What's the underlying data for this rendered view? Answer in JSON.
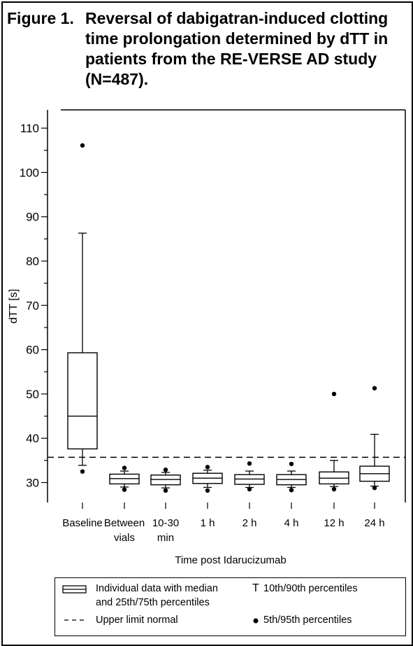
{
  "title": {
    "prefix": "Figure 1.",
    "text": "Reversal of dabigatran-induced clotting time prolongation determined by dTT in patients from the RE-VERSE AD study (N=487)."
  },
  "chart_data": {
    "type": "box",
    "title": "Figure 1. Reversal of dabigatran-induced clotting time prolongation determined by dTT in patients from the RE-VERSE AD study (N=487).",
    "xlabel": "Time post Idarucizumab",
    "ylabel": "dTT [s]",
    "ylim": [
      25,
      114
    ],
    "yticks": [
      30,
      40,
      50,
      60,
      70,
      80,
      90,
      100,
      110
    ],
    "reference_line": {
      "value": 35.7,
      "label": "Upper limit normal",
      "style": "dashed"
    },
    "categories": [
      [
        "Baseline"
      ],
      [
        "Between",
        "vials"
      ],
      [
        "10-30",
        "min"
      ],
      [
        "1 h"
      ],
      [
        "2 h"
      ],
      [
        "4 h"
      ],
      [
        "12 h"
      ],
      [
        "24 h"
      ]
    ],
    "boxes": [
      {
        "p5": 32.5,
        "p10": 33.9,
        "q1": 37.6,
        "median": 45.0,
        "q3": 59.3,
        "p90": 86.3,
        "p95": 106.1
      },
      {
        "p5": 28.4,
        "p10": 29.0,
        "q1": 29.7,
        "median": 30.9,
        "q3": 31.9,
        "p90": 32.6,
        "p95": 33.3
      },
      {
        "p5": 28.2,
        "p10": 28.8,
        "q1": 29.5,
        "median": 30.7,
        "q3": 31.7,
        "p90": 32.3,
        "p95": 32.9
      },
      {
        "p5": 28.2,
        "p10": 28.9,
        "q1": 29.8,
        "median": 31.0,
        "q3": 32.1,
        "p90": 32.8,
        "p95": 33.5
      },
      {
        "p5": 28.5,
        "p10": 28.9,
        "q1": 29.6,
        "median": 30.8,
        "q3": 31.8,
        "p90": 32.6,
        "p95": 34.3
      },
      {
        "p5": 28.3,
        "p10": 28.9,
        "q1": 29.5,
        "median": 30.7,
        "q3": 31.8,
        "p90": 32.6,
        "p95": 34.2
      },
      {
        "p5": 28.5,
        "p10": 29.1,
        "q1": 29.7,
        "median": 31.0,
        "q3": 32.4,
        "p90": 35.0,
        "p95": 50.0
      },
      {
        "p5": 28.8,
        "p10": 29.2,
        "q1": 30.3,
        "median": 32.0,
        "q3": 33.7,
        "p90": 40.9,
        "p95": 51.3
      }
    ]
  },
  "legend": {
    "box_text_line1": "Individual data with median",
    "box_text_line2": "and 25th/75th percentiles",
    "whisker_symbol": "T",
    "whisker_text": "10th/90th percentiles",
    "line_text": "Upper limit normal",
    "dot_text": "5th/95th percentiles"
  },
  "colors": {
    "ink": "#000000",
    "background": "#ffffff"
  }
}
